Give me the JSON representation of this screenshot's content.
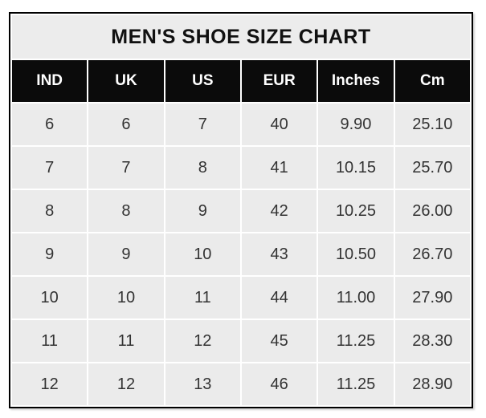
{
  "table": {
    "title": "MEN'S SHOE SIZE CHART",
    "columns": [
      "IND",
      "UK",
      "US",
      "EUR",
      "Inches",
      "Cm"
    ],
    "rows": [
      [
        "6",
        "6",
        "7",
        "40",
        "9.90",
        "25.10"
      ],
      [
        "7",
        "7",
        "8",
        "41",
        "10.15",
        "25.70"
      ],
      [
        "8",
        "8",
        "9",
        "42",
        "10.25",
        "26.00"
      ],
      [
        "9",
        "9",
        "10",
        "43",
        "10.50",
        "26.70"
      ],
      [
        "10",
        "10",
        "11",
        "44",
        "11.00",
        "27.90"
      ],
      [
        "11",
        "11",
        "12",
        "45",
        "11.25",
        "28.30"
      ],
      [
        "12",
        "12",
        "13",
        "46",
        "11.25",
        "28.90"
      ]
    ]
  },
  "colors": {
    "title_bg": "#ececec",
    "header_bg": "#0b0b0b",
    "header_text": "#ffffff",
    "cell_bg": "#ebebeb",
    "cell_text": "#333333",
    "border": "#000000",
    "page_bg": "#ffffff"
  },
  "chart_data": {
    "type": "table",
    "title": "MEN'S SHOE SIZE CHART",
    "columns": [
      "IND",
      "UK",
      "US",
      "EUR",
      "Inches",
      "Cm"
    ],
    "rows": [
      [
        6,
        6,
        7,
        40,
        9.9,
        25.1
      ],
      [
        7,
        7,
        8,
        41,
        10.15,
        25.7
      ],
      [
        8,
        8,
        9,
        42,
        10.25,
        26.0
      ],
      [
        9,
        9,
        10,
        43,
        10.5,
        26.7
      ],
      [
        10,
        10,
        11,
        44,
        11.0,
        27.9
      ],
      [
        11,
        11,
        12,
        45,
        11.25,
        28.3
      ],
      [
        12,
        12,
        13,
        46,
        11.25,
        28.9
      ]
    ]
  }
}
